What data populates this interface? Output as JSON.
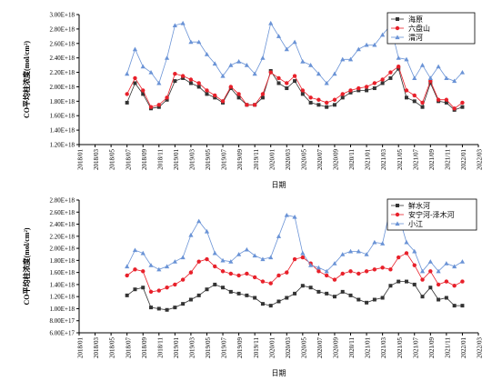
{
  "chart_data": [
    {
      "type": "line",
      "ylabel": "CO平均柱浓度(mol/cm²)",
      "xlabel": "日期",
      "ylim": [
        1.2e+18,
        3e+18
      ],
      "yticks": [
        1.2e+18,
        1.4e+18,
        1.6e+18,
        1.8e+18,
        2e+18,
        2.2e+18,
        2.4e+18,
        2.6e+18,
        2.8e+18,
        3e+18
      ],
      "ytick_labels": [
        "1.20E+18",
        "1.40E+18",
        "1.60E+18",
        "1.80E+18",
        "2.00E+18",
        "2.20E+18",
        "2.40E+18",
        "2.60E+18",
        "2.80E+18",
        "3.00E+18"
      ],
      "xtick_labels": [
        "2018/01",
        "2018/03",
        "2018/05",
        "2018/07",
        "2018/09",
        "2018/11",
        "2019/01",
        "2019/03",
        "2019/05",
        "2019/07",
        "2019/09",
        "2019/11",
        "2020/01",
        "2020/03",
        "2020/05",
        "2020/07",
        "2020/09",
        "2020/11",
        "2021/01",
        "2021/03",
        "2021/05",
        "2021/07",
        "2021/09",
        "2021/11",
        "2022/01",
        "2022/03"
      ],
      "x_start_month": 6,
      "legend_position": "top-right",
      "series": [
        {
          "name": "海原",
          "color": "#333333",
          "marker": "square",
          "values": [
            1.78e+18,
            2.05e+18,
            1.9e+18,
            1.7e+18,
            1.72e+18,
            1.82e+18,
            2.08e+18,
            2.12e+18,
            2.05e+18,
            2e+18,
            1.9e+18,
            1.85e+18,
            1.78e+18,
            1.98e+18,
            1.85e+18,
            1.75e+18,
            1.75e+18,
            1.85e+18,
            2.22e+18,
            2.05e+18,
            1.98e+18,
            2.08e+18,
            1.9e+18,
            1.78e+18,
            1.75e+18,
            1.72e+18,
            1.75e+18,
            1.85e+18,
            1.92e+18,
            1.95e+18,
            1.95e+18,
            1.98e+18,
            2.05e+18,
            2.12e+18,
            2.25e+18,
            1.85e+18,
            1.8e+18,
            1.72e+18,
            2.05e+18,
            1.8e+18,
            1.78e+18,
            1.68e+18,
            1.72e+18
          ]
        },
        {
          "name": "六盘山",
          "color": "#e8202a",
          "marker": "circle",
          "values": [
            1.9e+18,
            2.12e+18,
            1.95e+18,
            1.72e+18,
            1.75e+18,
            1.85e+18,
            2.18e+18,
            2.15e+18,
            2.1e+18,
            2.05e+18,
            1.95e+18,
            1.88e+18,
            1.8e+18,
            2e+18,
            1.9e+18,
            1.75e+18,
            1.75e+18,
            1.9e+18,
            2.2e+18,
            2.12e+18,
            2.05e+18,
            2.15e+18,
            1.95e+18,
            1.85e+18,
            1.82e+18,
            1.78e+18,
            1.82e+18,
            1.9e+18,
            1.95e+18,
            1.98e+18,
            2e+18,
            2.05e+18,
            2.1e+18,
            2.2e+18,
            2.28e+18,
            1.95e+18,
            1.88e+18,
            1.78e+18,
            2.08e+18,
            1.82e+18,
            1.82e+18,
            1.7e+18,
            1.78e+18
          ]
        },
        {
          "name": "渭河",
          "color": "#6a93d6",
          "marker": "triangle",
          "values": [
            2.18e+18,
            2.52e+18,
            2.28e+18,
            2.2e+18,
            2.05e+18,
            2.4e+18,
            2.85e+18,
            2.88e+18,
            2.62e+18,
            2.62e+18,
            2.45e+18,
            2.32e+18,
            2.15e+18,
            2.3e+18,
            2.35e+18,
            2.3e+18,
            2.18e+18,
            2.4e+18,
            2.88e+18,
            2.7e+18,
            2.52e+18,
            2.62e+18,
            2.35e+18,
            2.3e+18,
            2.18e+18,
            2.05e+18,
            2.18e+18,
            2.38e+18,
            2.38e+18,
            2.52e+18,
            2.58e+18,
            2.58e+18,
            2.72e+18,
            2.85e+18,
            2.4e+18,
            2.38e+18,
            2.12e+18,
            2.3e+18,
            2.12e+18,
            2.28e+18,
            2.12e+18,
            2.08e+18,
            2.2e+18
          ]
        }
      ]
    },
    {
      "type": "line",
      "ylabel": "CO平均柱浓度(mol/cm²)",
      "xlabel": "日期",
      "ylim": [
        6e+17,
        2.8e+18
      ],
      "yticks": [
        6e+17,
        8e+17,
        1e+18,
        1.2e+18,
        1.4e+18,
        1.6e+18,
        1.8e+18,
        2e+18,
        2.2e+18,
        2.4e+18,
        2.6e+18,
        2.8e+18
      ],
      "ytick_labels": [
        "6.00E+17",
        "8.00E+17",
        "1.00E+18",
        "1.20E+18",
        "1.40E+18",
        "1.60E+18",
        "1.80E+18",
        "2.00E+18",
        "2.20E+18",
        "2.40E+18",
        "2.60E+18",
        "2.80E+18"
      ],
      "xtick_labels": [
        "2018/01",
        "2018/03",
        "2018/05",
        "2018/07",
        "2018/09",
        "2018/11",
        "2019/01",
        "2019/03",
        "2019/05",
        "2019/07",
        "2019/09",
        "2019/11",
        "2020/01",
        "2020/03",
        "2020/05",
        "2020/07",
        "2020/09",
        "2020/11",
        "2021/01",
        "2021/03",
        "2021/05",
        "2021/07",
        "2021/09",
        "2021/11",
        "2022/01",
        "2022/03"
      ],
      "x_start_month": 6,
      "legend_position": "top-right",
      "series": [
        {
          "name": "鲜水河",
          "color": "#333333",
          "marker": "square",
          "values": [
            1.22e+18,
            1.32e+18,
            1.35e+18,
            1.02e+18,
            1e+18,
            9.8e+17,
            1.02e+18,
            1.08e+18,
            1.15e+18,
            1.22e+18,
            1.32e+18,
            1.4e+18,
            1.35e+18,
            1.28e+18,
            1.25e+18,
            1.22e+18,
            1.18e+18,
            1.08e+18,
            1.05e+18,
            1.12e+18,
            1.18e+18,
            1.25e+18,
            1.38e+18,
            1.35e+18,
            1.28e+18,
            1.25e+18,
            1.2e+18,
            1.28e+18,
            1.22e+18,
            1.15e+18,
            1.1e+18,
            1.15e+18,
            1.18e+18,
            1.38e+18,
            1.45e+18,
            1.45e+18,
            1.4e+18,
            1.2e+18,
            1.35e+18,
            1.15e+18,
            1.18e+18,
            1.05e+18,
            1.05e+18
          ]
        },
        {
          "name": "安宁河-泽木河",
          "color": "#e8202a",
          "marker": "circle",
          "values": [
            1.55e+18,
            1.65e+18,
            1.62e+18,
            1.28e+18,
            1.3e+18,
            1.35e+18,
            1.4e+18,
            1.48e+18,
            1.6e+18,
            1.78e+18,
            1.82e+18,
            1.7e+18,
            1.62e+18,
            1.58e+18,
            1.55e+18,
            1.58e+18,
            1.52e+18,
            1.45e+18,
            1.42e+18,
            1.55e+18,
            1.6e+18,
            1.82e+18,
            1.85e+18,
            1.75e+18,
            1.62e+18,
            1.55e+18,
            1.48e+18,
            1.58e+18,
            1.62e+18,
            1.58e+18,
            1.62e+18,
            1.65e+18,
            1.68e+18,
            1.65e+18,
            1.85e+18,
            1.92e+18,
            1.72e+18,
            1.48e+18,
            1.62e+18,
            1.4e+18,
            1.45e+18,
            1.38e+18,
            1.45e+18
          ]
        },
        {
          "name": "小江",
          "color": "#6a93d6",
          "marker": "triangle",
          "values": [
            1.7e+18,
            1.97e+18,
            1.92e+18,
            1.72e+18,
            1.65e+18,
            1.7e+18,
            1.78e+18,
            1.85e+18,
            2.22e+18,
            2.45e+18,
            2.28e+18,
            1.92e+18,
            1.8e+18,
            1.78e+18,
            1.9e+18,
            1.98e+18,
            1.88e+18,
            1.82e+18,
            1.85e+18,
            2.2e+18,
            2.55e+18,
            2.52e+18,
            1.92e+18,
            1.72e+18,
            1.68e+18,
            1.62e+18,
            1.75e+18,
            1.9e+18,
            1.95e+18,
            1.95e+18,
            1.9e+18,
            2.1e+18,
            2.08e+18,
            2.68e+18,
            2.55e+18,
            2.1e+18,
            1.95e+18,
            1.62e+18,
            1.78e+18,
            1.62e+18,
            1.75e+18,
            1.7e+18,
            1.78e+18
          ]
        }
      ]
    }
  ]
}
